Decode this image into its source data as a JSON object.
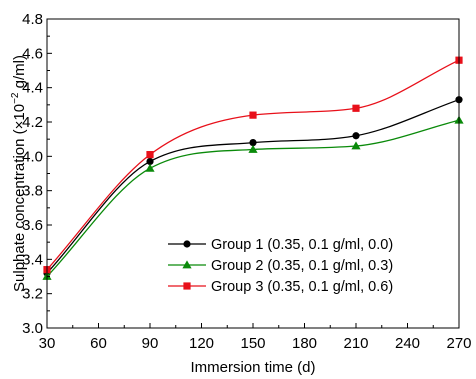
{
  "chart_data": {
    "type": "line",
    "xlabel": "Immersion time (d)",
    "ylabel_main": "Sulphate concentration (×10",
    "ylabel_sup": "−2",
    "ylabel_end": " g/ml)",
    "x_ticks": [
      30,
      60,
      90,
      120,
      150,
      180,
      210,
      240,
      270
    ],
    "x_tick_labels": [
      "30",
      "60",
      "90",
      "120",
      "150",
      "180",
      "210",
      "240",
      "270"
    ],
    "y_ticks": [
      3.0,
      3.2,
      3.4,
      3.6,
      3.8,
      4.0,
      4.2,
      4.4,
      4.6,
      4.8
    ],
    "y_tick_labels": [
      "3.0",
      "3.2",
      "3.4",
      "3.6",
      "3.8",
      "4.0",
      "4.2",
      "4.4",
      "4.6",
      "4.8"
    ],
    "xlim": [
      30,
      270
    ],
    "ylim": [
      3.0,
      4.8
    ],
    "x": [
      30,
      90,
      150,
      210,
      270
    ],
    "series": [
      {
        "name": "Group 1 (0.35, 0.1 g/ml, 0.0)",
        "color": "#000000",
        "marker": "circle",
        "values": [
          3.32,
          3.97,
          4.08,
          4.12,
          4.33
        ]
      },
      {
        "name": "Group 2 (0.35, 0.1 g/ml, 0.3)",
        "color": "#0a8a0a",
        "marker": "triangle",
        "values": [
          3.3,
          3.93,
          4.04,
          4.06,
          4.21
        ]
      },
      {
        "name": "Group 3 (0.35, 0.1 g/ml, 0.6)",
        "color": "#e8101a",
        "marker": "square",
        "values": [
          3.34,
          4.01,
          4.24,
          4.28,
          4.56
        ]
      }
    ],
    "legend_position": "lower-right",
    "grid": false
  }
}
